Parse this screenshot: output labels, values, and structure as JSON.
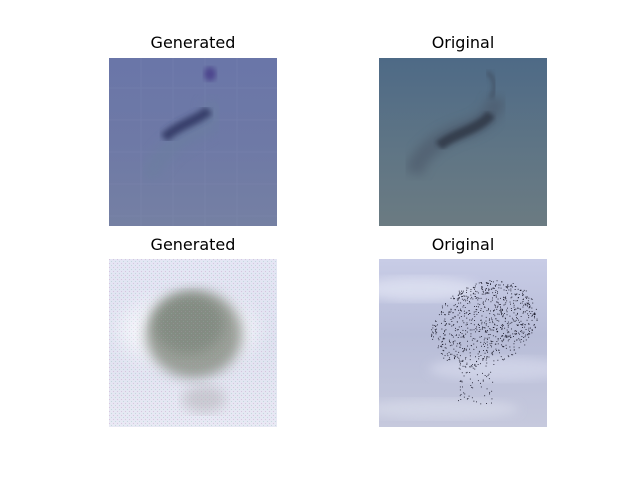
{
  "panels": [
    {
      "title": "Generated",
      "kind": "generated-murmuration-stream"
    },
    {
      "title": "Original",
      "kind": "original-murmuration-stream"
    },
    {
      "title": "Generated",
      "kind": "generated-murmuration-cloud"
    },
    {
      "title": "Original",
      "kind": "original-murmuration-cloud"
    }
  ]
}
